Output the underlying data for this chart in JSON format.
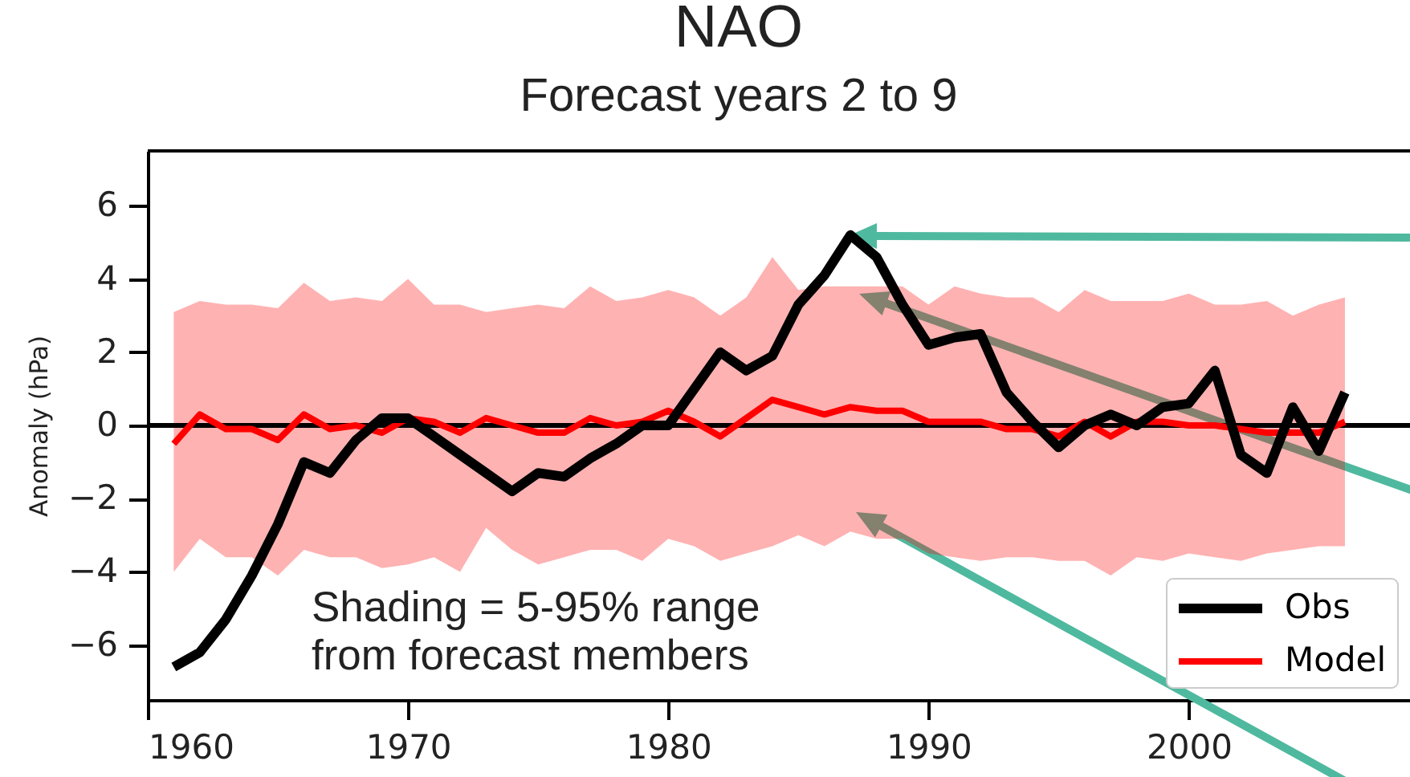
{
  "chart_data": {
    "type": "line",
    "title": "NAO",
    "subtitle": "Forecast years 2 to 9",
    "ylabel": "Anomaly (hPa)",
    "x": [
      1961,
      1962,
      1963,
      1964,
      1965,
      1966,
      1967,
      1968,
      1969,
      1970,
      1971,
      1972,
      1973,
      1974,
      1975,
      1976,
      1977,
      1978,
      1979,
      1980,
      1981,
      1982,
      1983,
      1984,
      1985,
      1986,
      1987,
      1988,
      1989,
      1990,
      1991,
      1992,
      1993,
      1994,
      1995,
      1996,
      1997,
      1998,
      1999,
      2000,
      2001,
      2002,
      2003,
      2004,
      2005,
      2006
    ],
    "series": [
      {
        "name": "Obs",
        "color": "#000000",
        "values": [
          -6.6,
          -6.2,
          -5.3,
          -4.1,
          -2.7,
          -1.0,
          -1.3,
          -0.4,
          0.2,
          0.2,
          -0.3,
          -0.8,
          -1.3,
          -1.8,
          -1.3,
          -1.4,
          -0.9,
          -0.5,
          0.0,
          0.0,
          1.0,
          2.0,
          1.5,
          1.9,
          3.3,
          4.1,
          5.2,
          4.6,
          3.3,
          2.2,
          2.4,
          2.5,
          0.9,
          0.1,
          -0.6,
          0.0,
          0.3,
          0.0,
          0.5,
          0.6,
          1.5,
          -0.8,
          -1.3,
          0.5,
          -0.7,
          0.9
        ]
      },
      {
        "name": "Model",
        "color": "#ff0000",
        "values": [
          -0.5,
          0.3,
          -0.1,
          -0.1,
          -0.4,
          0.3,
          -0.1,
          0.0,
          -0.2,
          0.2,
          0.1,
          -0.2,
          0.2,
          0.0,
          -0.2,
          -0.2,
          0.2,
          0.0,
          0.1,
          0.4,
          0.1,
          -0.3,
          0.2,
          0.7,
          0.5,
          0.3,
          0.5,
          0.4,
          0.4,
          0.1,
          0.1,
          0.1,
          -0.1,
          -0.1,
          -0.3,
          0.1,
          -0.3,
          0.1,
          0.1,
          0.0,
          0.0,
          -0.1,
          -0.2,
          -0.2,
          -0.2,
          0.1
        ],
        "lower": [
          -4.0,
          -3.1,
          -3.6,
          -3.6,
          -4.1,
          -3.4,
          -3.6,
          -3.6,
          -3.9,
          -3.8,
          -3.6,
          -4.0,
          -2.8,
          -3.4,
          -3.8,
          -3.6,
          -3.4,
          -3.4,
          -3.7,
          -3.1,
          -3.3,
          -3.7,
          -3.5,
          -3.3,
          -3.0,
          -3.3,
          -2.9,
          -3.1,
          -3.1,
          -3.5,
          -3.6,
          -3.7,
          -3.6,
          -3.6,
          -3.7,
          -3.7,
          -4.1,
          -3.6,
          -3.7,
          -3.5,
          -3.6,
          -3.7,
          -3.5,
          -3.4,
          -3.3,
          -3.3
        ],
        "upper": [
          3.1,
          3.4,
          3.3,
          3.3,
          3.2,
          3.9,
          3.4,
          3.5,
          3.4,
          4.0,
          3.3,
          3.3,
          3.1,
          3.2,
          3.3,
          3.2,
          3.8,
          3.4,
          3.5,
          3.7,
          3.5,
          3.0,
          3.5,
          4.6,
          3.7,
          3.8,
          3.8,
          3.8,
          3.8,
          3.3,
          3.8,
          3.6,
          3.5,
          3.5,
          3.1,
          3.7,
          3.4,
          3.4,
          3.4,
          3.6,
          3.3,
          3.3,
          3.4,
          3.0,
          3.3,
          3.5
        ]
      }
    ],
    "xlim": [
      1960,
      2008.5
    ],
    "ylim": [
      -7.5,
      7.5
    ],
    "xticks": [
      1960,
      1970,
      1980,
      1990,
      2000
    ],
    "yticks": [
      -6,
      -4,
      -2,
      0,
      2,
      4,
      6
    ],
    "ref_lines": [
      {
        "axis": "y",
        "value": 0,
        "color": "#000000"
      }
    ],
    "annotations": [
      "Shading = 5-95% range\nfrom forecast members"
    ],
    "legend": "bottom right",
    "grid": false
  }
}
